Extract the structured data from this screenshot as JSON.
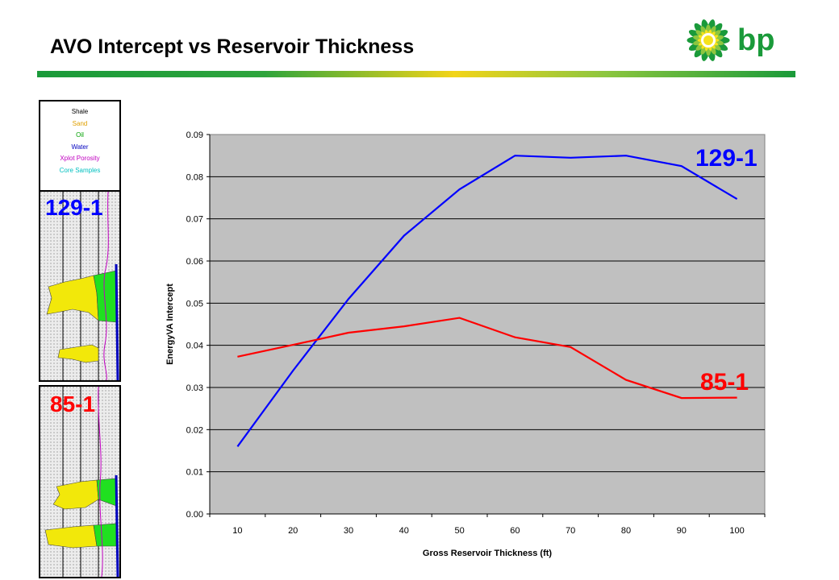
{
  "page": {
    "title": "AVO Intercept vs Reservoir Thickness",
    "logo_text": "bp"
  },
  "log_legend": [
    {
      "label": "Shale",
      "color": "#000000"
    },
    {
      "label": "Sand",
      "color": "#e0a000"
    },
    {
      "label": "Oil",
      "color": "#00a000"
    },
    {
      "label": "Water",
      "color": "#0000c0"
    },
    {
      "label": "Xplot Porosity",
      "color": "#c000c0"
    },
    {
      "label": "Core Samples",
      "color": "#00c0c0"
    }
  ],
  "wells": {
    "well1": "129-1",
    "well2": "85-1"
  },
  "chart_data": {
    "type": "line",
    "xlabel": "Gross Reservoir Thickness (ft)",
    "ylabel": "EnergyVA Intercept",
    "x": [
      10,
      20,
      30,
      40,
      50,
      60,
      70,
      80,
      90,
      100
    ],
    "ylim": [
      0,
      0.09
    ],
    "yticks": [
      "0.00",
      "0.01",
      "0.02",
      "0.03",
      "0.04",
      "0.05",
      "0.06",
      "0.07",
      "0.08",
      "0.09"
    ],
    "grid": true,
    "series": [
      {
        "name": "129-1",
        "color": "#0000ff",
        "values": [
          0.016,
          0.034,
          0.051,
          0.066,
          0.077,
          0.085,
          0.0845,
          0.085,
          0.0825,
          0.0747
        ]
      },
      {
        "name": "85-1",
        "color": "#ff0000",
        "values": [
          0.0373,
          0.0401,
          0.043,
          0.0445,
          0.0465,
          0.0419,
          0.0396,
          0.0318,
          0.0275,
          0.0276
        ]
      }
    ]
  }
}
